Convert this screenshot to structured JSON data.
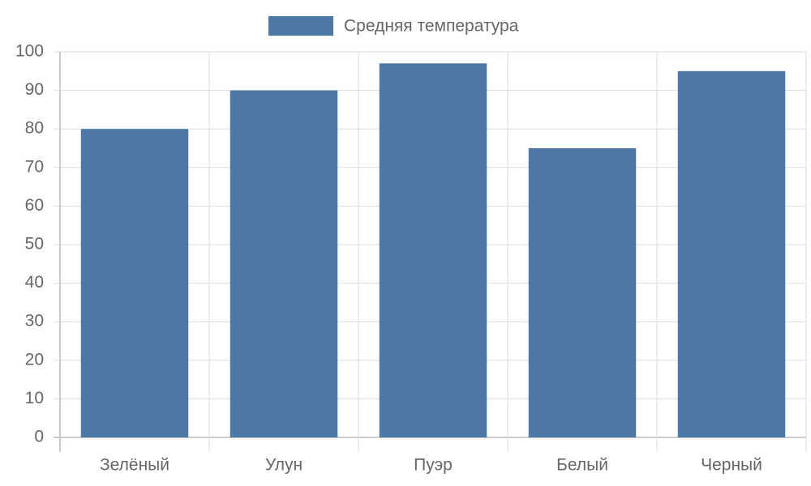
{
  "chart_data": {
    "type": "bar",
    "categories": [
      "Зелёный",
      "Улун",
      "Пуэр",
      "Белый",
      "Черный"
    ],
    "series": [
      {
        "name": "Средняя температура",
        "color": "#4e79a7",
        "values": [
          80,
          90,
          97,
          75,
          95
        ]
      }
    ],
    "ylim": [
      0,
      100
    ],
    "yticks": [
      0,
      10,
      20,
      30,
      40,
      50,
      60,
      70,
      80,
      90,
      100
    ],
    "grid": true,
    "legend": "top"
  }
}
